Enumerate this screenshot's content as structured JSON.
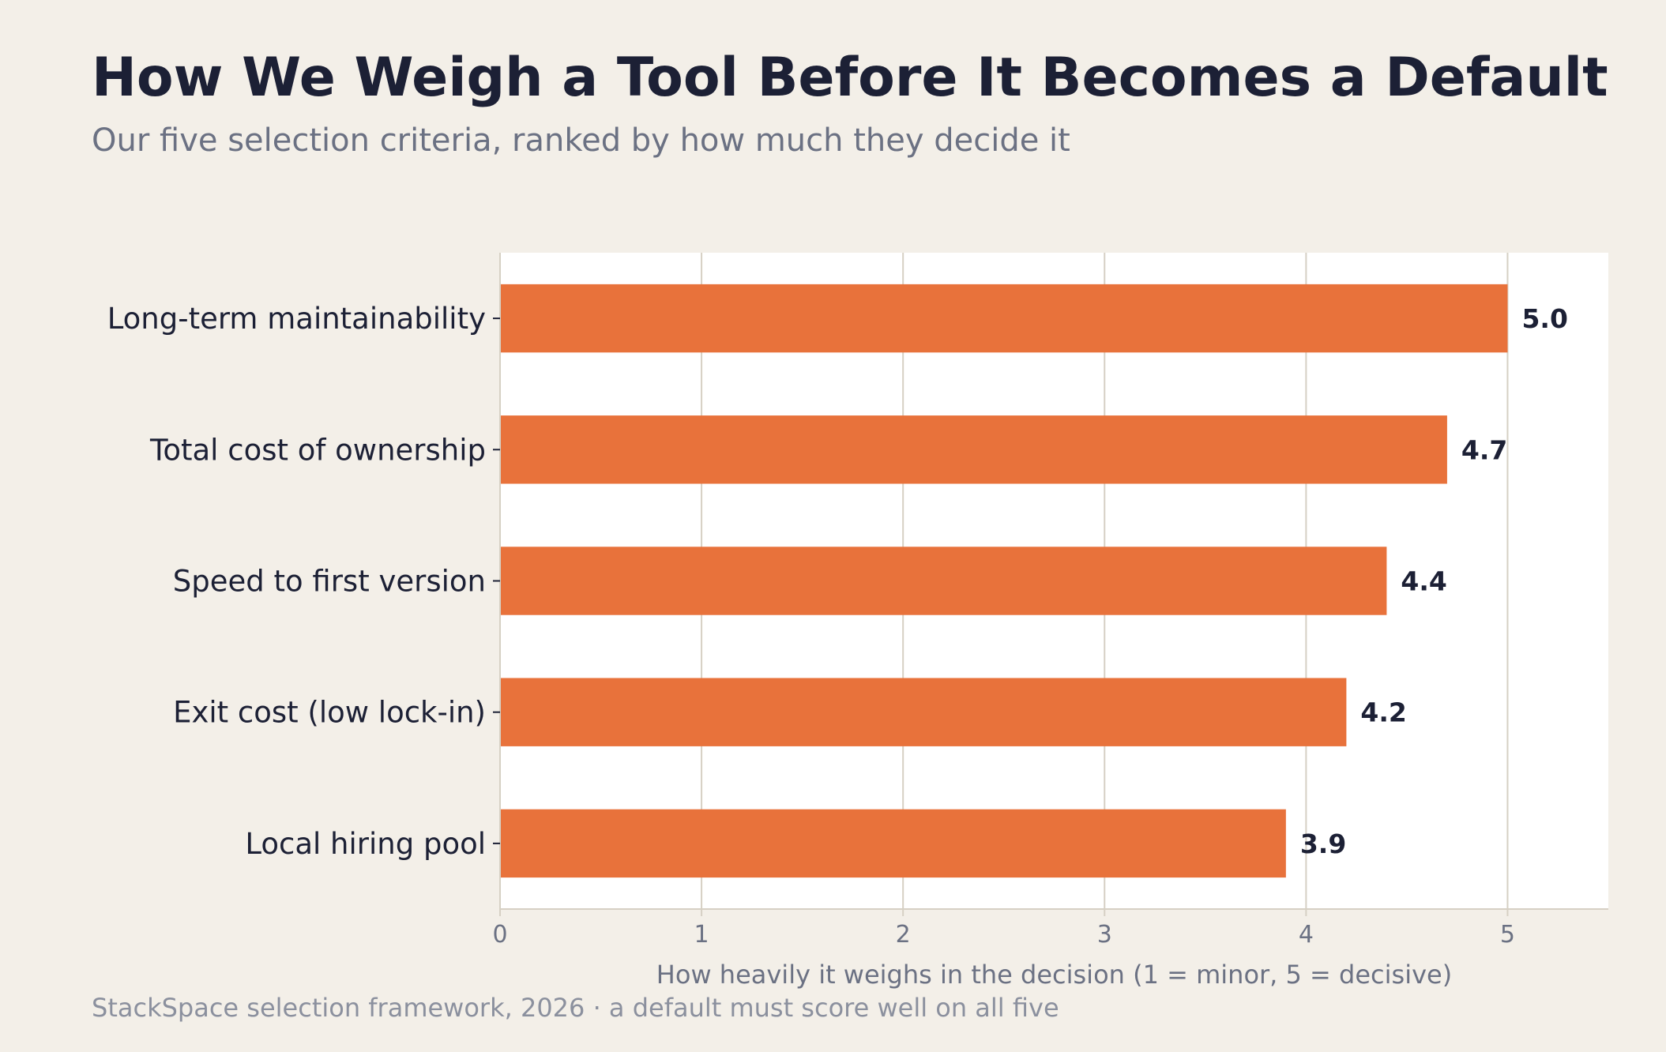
{
  "title": "How We Weigh a Tool Before It Becomes a Default",
  "subtitle": "Our five selection criteria, ranked by how much they decide it",
  "footer": "StackSpace selection framework, 2026  ·  a default must score well on all five",
  "colors": {
    "background": "#f3efe8",
    "plot_background": "#ffffff",
    "bar": "#e8723b",
    "grid": "#d6d0c4",
    "text_dark": "#1c2035",
    "text_muted": "#6b7183"
  },
  "chart_data": {
    "type": "bar",
    "orientation": "horizontal",
    "categories": [
      "Long-term maintainability",
      "Total cost of ownership",
      "Speed to first version",
      "Exit cost (low lock-in)",
      "Local hiring pool"
    ],
    "values": [
      5.0,
      4.7,
      4.4,
      4.2,
      3.9
    ],
    "value_labels": [
      "5.0",
      "4.7",
      "4.4",
      "4.2",
      "3.9"
    ],
    "xlabel": "How heavily it weighs in the decision  (1 = minor, 5 = decisive)",
    "ylabel": "",
    "xlim": [
      0,
      5.5
    ],
    "xticks": [
      0,
      1,
      2,
      3,
      4,
      5
    ],
    "grid": "vertical",
    "legend": "none"
  }
}
